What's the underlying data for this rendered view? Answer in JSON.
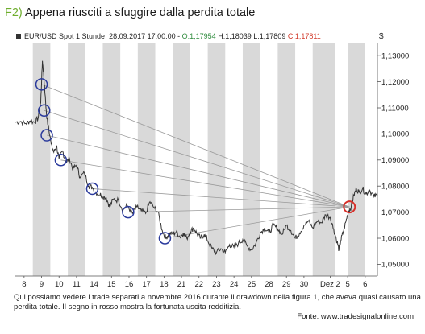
{
  "title": {
    "number": "F2)",
    "text": "Appena riusciti a sfuggire dalla perdita totale"
  },
  "info": {
    "instrument": "EUR/USD Spot 1 Stunde",
    "datetime": "28.09.2017 17:00:00",
    "open": "O:1,17954",
    "high": "H:1,18039",
    "low": "L:1,17809",
    "close": "C:1,17811"
  },
  "currency_symbol": "$",
  "caption": "Qui possiamo vedere i trade separati a novembre 2016 durante il drawdown nella figura 1, che aveva quasi causato una perdita totale. Il segno in rosso mostra la fortunata uscita redditizia.",
  "source": "Fonte: www.tradesignalonline.com",
  "colors": {
    "accent_green": "#6fae2e",
    "price_line": "#333333",
    "band_gray": "#d9d9d9",
    "entry_circle": "#2a3a9c",
    "exit_circle": "#d9302a",
    "trade_line": "#9a9a9a"
  },
  "chart_data": {
    "type": "line",
    "title": "Appena riusciti a sfuggire dalla perdita totale",
    "series_name": "EUR/USD Spot 1 Stunde",
    "xlabel": "",
    "ylabel": "$",
    "ylim": [
      1.0455,
      1.135
    ],
    "y_ticks": [
      "1,13000",
      "1,12000",
      "1,11000",
      "1,10000",
      "1,09000",
      "1,08000",
      "1,07000",
      "1,06000",
      "1,05000"
    ],
    "y_tick_values": [
      1.13,
      1.12,
      1.11,
      1.1,
      1.09,
      1.08,
      1.07,
      1.06,
      1.05
    ],
    "x_tick_labels": [
      "8",
      "9",
      "10",
      "11",
      "14",
      "15",
      "16",
      "17",
      "18",
      "21",
      "22",
      "23",
      "24",
      "25",
      "28",
      "29",
      "30",
      "Dez 2",
      "5",
      "6"
    ],
    "x_tick_index": [
      0,
      1,
      2,
      3,
      4,
      5,
      6,
      7,
      8,
      9,
      10,
      11,
      12,
      13,
      14,
      15,
      16,
      17.5,
      18.5,
      19.5
    ],
    "x_range": [
      -0.5,
      20.2
    ],
    "shaded_bands": [
      [
        0.5,
        1.5
      ],
      [
        2.5,
        3.5
      ],
      [
        4.5,
        5.5
      ],
      [
        6.5,
        7.5
      ],
      [
        8.5,
        9.5
      ],
      [
        10.5,
        11.5
      ],
      [
        12.5,
        13.5
      ],
      [
        14.5,
        15.5
      ],
      [
        16.5,
        17.8
      ],
      [
        18.5,
        19.5
      ]
    ],
    "price_path": [
      [
        -0.5,
        1.1045
      ],
      [
        -0.2,
        1.1048
      ],
      [
        0.1,
        1.104
      ],
      [
        0.35,
        1.105
      ],
      [
        0.6,
        1.1045
      ],
      [
        0.8,
        1.106
      ],
      [
        0.95,
        1.112
      ],
      [
        1.05,
        1.128
      ],
      [
        1.12,
        1.123
      ],
      [
        1.2,
        1.115
      ],
      [
        1.3,
        1.106
      ],
      [
        1.4,
        1.103
      ],
      [
        1.55,
        1.096
      ],
      [
        1.7,
        1.093
      ],
      [
        1.85,
        1.0955
      ],
      [
        2.0,
        1.0905
      ],
      [
        2.2,
        1.0935
      ],
      [
        2.4,
        1.089
      ],
      [
        2.6,
        1.0905
      ],
      [
        2.8,
        1.0865
      ],
      [
        3.0,
        1.088
      ],
      [
        3.2,
        1.0835
      ],
      [
        3.45,
        1.085
      ],
      [
        3.7,
        1.08
      ],
      [
        3.9,
        1.0795
      ],
      [
        4.2,
        1.077
      ],
      [
        4.45,
        1.0765
      ],
      [
        4.7,
        1.0755
      ],
      [
        4.9,
        1.072
      ],
      [
        5.1,
        1.075
      ],
      [
        5.4,
        1.0745
      ],
      [
        5.65,
        1.071
      ],
      [
        5.9,
        1.0725
      ],
      [
        6.2,
        1.0695
      ],
      [
        6.45,
        1.072
      ],
      [
        6.7,
        1.0705
      ],
      [
        6.95,
        1.0695
      ],
      [
        7.2,
        1.074
      ],
      [
        7.45,
        1.0715
      ],
      [
        7.65,
        1.07
      ],
      [
        7.9,
        1.063
      ],
      [
        8.1,
        1.06
      ],
      [
        8.3,
        1.062
      ],
      [
        8.5,
        1.0615
      ],
      [
        8.7,
        1.0625
      ],
      [
        8.9,
        1.0605
      ],
      [
        9.1,
        1.062
      ],
      [
        9.3,
        1.06
      ],
      [
        9.5,
        1.0625
      ],
      [
        9.7,
        1.064
      ],
      [
        9.9,
        1.0615
      ],
      [
        10.1,
        1.06
      ],
      [
        10.3,
        1.0615
      ],
      [
        10.5,
        1.059
      ],
      [
        10.75,
        1.056
      ],
      [
        11.0,
        1.0545
      ],
      [
        11.25,
        1.056
      ],
      [
        11.5,
        1.0545
      ],
      [
        11.75,
        1.0575
      ],
      [
        12.0,
        1.0565
      ],
      [
        12.25,
        1.058
      ],
      [
        12.5,
        1.0595
      ],
      [
        12.75,
        1.057
      ],
      [
        13.0,
        1.0555
      ],
      [
        13.25,
        1.058
      ],
      [
        13.5,
        1.062
      ],
      [
        13.75,
        1.064
      ],
      [
        14.0,
        1.062
      ],
      [
        14.25,
        1.065
      ],
      [
        14.5,
        1.0635
      ],
      [
        14.75,
        1.0615
      ],
      [
        15.0,
        1.065
      ],
      [
        15.25,
        1.063
      ],
      [
        15.5,
        1.06
      ],
      [
        15.75,
        1.062
      ],
      [
        16.0,
        1.065
      ],
      [
        16.25,
        1.0665
      ],
      [
        16.5,
        1.064
      ],
      [
        16.75,
        1.0665
      ],
      [
        17.0,
        1.066
      ],
      [
        17.25,
        1.069
      ],
      [
        17.5,
        1.068
      ],
      [
        17.7,
        1.0635
      ],
      [
        17.9,
        1.0585
      ],
      [
        18.0,
        1.0555
      ],
      [
        18.1,
        1.059
      ],
      [
        18.25,
        1.0625
      ],
      [
        18.4,
        1.0665
      ],
      [
        18.55,
        1.0705
      ],
      [
        18.7,
        1.072
      ],
      [
        18.85,
        1.0765
      ],
      [
        19.0,
        1.079
      ],
      [
        19.15,
        1.0775
      ],
      [
        19.35,
        1.079
      ],
      [
        19.55,
        1.077
      ],
      [
        19.75,
        1.0785
      ],
      [
        20.0,
        1.076
      ],
      [
        20.2,
        1.0765
      ]
    ],
    "entries": [
      {
        "x": 1.0,
        "y": 1.119
      },
      {
        "x": 1.15,
        "y": 1.109
      },
      {
        "x": 1.3,
        "y": 1.0995
      },
      {
        "x": 2.1,
        "y": 1.09
      },
      {
        "x": 3.9,
        "y": 1.079
      },
      {
        "x": 5.95,
        "y": 1.07
      },
      {
        "x": 8.05,
        "y": 1.06
      }
    ],
    "exit": {
      "x": 18.6,
      "y": 1.072
    }
  }
}
